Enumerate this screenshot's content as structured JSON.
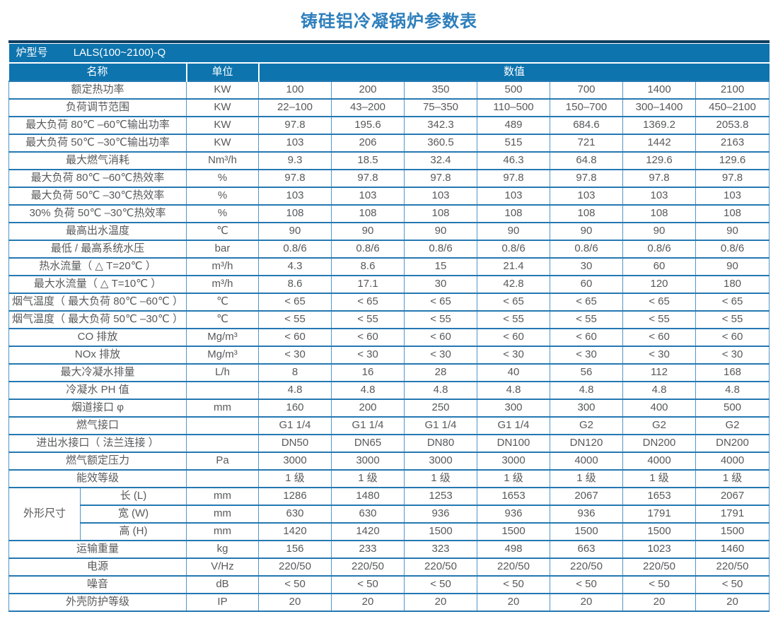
{
  "title": "铸硅铝冷凝锅炉参数表",
  "table": {
    "model_label": "炉型号",
    "model_value": "LALS(100~2100)-Q",
    "col_name": "名称",
    "col_unit": "单位",
    "col_value": "数值",
    "colors": {
      "header_bg": "#0e74ae",
      "top_strip": "#0d3b5e",
      "border_h": "#2478b2",
      "border_v": "#4f97c8",
      "title_text": "#2e7fbc",
      "cell_text": "#58595b"
    },
    "rows": [
      {
        "name": "额定热功率",
        "unit": "KW",
        "values": [
          "100",
          "200",
          "350",
          "500",
          "700",
          "1400",
          "2100"
        ]
      },
      {
        "name": "负荷调节范围",
        "unit": "KW",
        "values": [
          "22–100",
          "43–200",
          "75–350",
          "110–500",
          "150–700",
          "300–1400",
          "450–2100"
        ]
      },
      {
        "name": "最大负荷 80℃ –60℃输出功率",
        "unit": "KW",
        "values": [
          "97.8",
          "195.6",
          "342.3",
          "489",
          "684.6",
          "1369.2",
          "2053.8"
        ]
      },
      {
        "name": "最大负荷 50℃ –30℃输出功率",
        "unit": "KW",
        "values": [
          "103",
          "206",
          "360.5",
          "515",
          "721",
          "1442",
          "2163"
        ]
      },
      {
        "name": "最大燃气消耗",
        "unit": "Nm³/h",
        "values": [
          "9.3",
          "18.5",
          "32.4",
          "46.3",
          "64.8",
          "129.6",
          "129.6"
        ]
      },
      {
        "name": "最大负荷 80℃ –60℃热效率",
        "unit": "%",
        "values": [
          "97.8",
          "97.8",
          "97.8",
          "97.8",
          "97.8",
          "97.8",
          "97.8"
        ]
      },
      {
        "name": "最大负荷 50℃ –30℃热效率",
        "unit": "%",
        "values": [
          "103",
          "103",
          "103",
          "103",
          "103",
          "103",
          "103"
        ]
      },
      {
        "name": "30% 负荷 50℃ –30℃热效率",
        "unit": "%",
        "values": [
          "108",
          "108",
          "108",
          "108",
          "108",
          "108",
          "108"
        ]
      },
      {
        "name": "最高出水温度",
        "unit": "℃",
        "values": [
          "90",
          "90",
          "90",
          "90",
          "90",
          "90",
          "90"
        ]
      },
      {
        "name": "最低 / 最高系统水压",
        "unit": "bar",
        "values": [
          "0.8/6",
          "0.8/6",
          "0.8/6",
          "0.8/6",
          "0.8/6",
          "0.8/6",
          "0.8/6"
        ]
      },
      {
        "name": "热水流量（ △ T=20℃ ）",
        "unit": "m³/h",
        "values": [
          "4.3",
          "8.6",
          "15",
          "21.4",
          "30",
          "60",
          "90"
        ]
      },
      {
        "name": "最大水流量（ △ T=10℃ ）",
        "unit": "m³/h",
        "values": [
          "8.6",
          "17.1",
          "30",
          "42.8",
          "60",
          "120",
          "180"
        ]
      },
      {
        "name": "烟气温度（ 最大负荷 80℃ –60℃ ）",
        "unit": "℃",
        "values": [
          "< 65",
          "< 65",
          "< 65",
          "< 65",
          "< 65",
          "< 65",
          "< 65"
        ]
      },
      {
        "name": "烟气温度（ 最大负荷 50℃ –30℃ ）",
        "unit": "℃",
        "values": [
          "< 55",
          "< 55",
          "< 55",
          "< 55",
          "< 55",
          "< 55",
          "< 55"
        ]
      },
      {
        "name": "CO 排放",
        "unit": "Mg/m³",
        "values": [
          "< 60",
          "< 60",
          "< 60",
          "< 60",
          "< 60",
          "< 60",
          "< 60"
        ]
      },
      {
        "name": "NOx 排放",
        "unit": "Mg/m³",
        "values": [
          "< 30",
          "< 30",
          "< 30",
          "< 30",
          "< 30",
          "< 30",
          "< 30"
        ]
      },
      {
        "name": "最大冷凝水排量",
        "unit": "L/h",
        "values": [
          "8",
          "16",
          "28",
          "40",
          "56",
          "112",
          "168"
        ]
      },
      {
        "name": "冷凝水 PH 值",
        "unit": "",
        "values": [
          "4.8",
          "4.8",
          "4.8",
          "4.8",
          "4.8",
          "4.8",
          "4.8"
        ]
      },
      {
        "name": "烟道接口 φ",
        "unit": "mm",
        "values": [
          "160",
          "200",
          "250",
          "300",
          "300",
          "400",
          "500"
        ]
      },
      {
        "name": "燃气接口",
        "unit": "",
        "values": [
          "G1 1/4",
          "G1 1/4",
          "G1 1/4",
          "G1 1/4",
          "G2",
          "G2",
          "G2"
        ]
      },
      {
        "name": "进出水接口（ 法兰连接 ）",
        "unit": "",
        "values": [
          "DN50",
          "DN65",
          "DN80",
          "DN100",
          "DN120",
          "DN200",
          "DN200"
        ]
      },
      {
        "name": "燃气额定压力",
        "unit": "Pa",
        "values": [
          "3000",
          "3000",
          "3000",
          "3000",
          "4000",
          "4000",
          "4000"
        ]
      },
      {
        "name": "能效等级",
        "unit": "",
        "values": [
          "1 级",
          "1 级",
          "1 级",
          "1 级",
          "1 级",
          "1 级",
          "1 级"
        ]
      },
      {
        "group": {
          "label": "外形尺寸",
          "span": 3
        },
        "name": "长 (L)",
        "unit": "mm",
        "values": [
          "1286",
          "1480",
          "1253",
          "1653",
          "2067",
          "1653",
          "2067"
        ]
      },
      {
        "sub": true,
        "name": "宽 (W)",
        "unit": "mm",
        "values": [
          "630",
          "630",
          "936",
          "936",
          "936",
          "1791",
          "1791"
        ]
      },
      {
        "sub": true,
        "name": "高 (H)",
        "unit": "mm",
        "values": [
          "1420",
          "1420",
          "1500",
          "1500",
          "1500",
          "1500",
          "1500"
        ]
      },
      {
        "name": "运输重量",
        "unit": "kg",
        "values": [
          "156",
          "233",
          "323",
          "498",
          "663",
          "1023",
          "1460"
        ]
      },
      {
        "name": "电源",
        "unit": "V/Hz",
        "values": [
          "220/50",
          "220/50",
          "220/50",
          "220/50",
          "220/50",
          "220/50",
          "220/50"
        ]
      },
      {
        "name": "噪音",
        "unit": "dB",
        "values": [
          "< 50",
          "< 50",
          "< 50",
          "< 50",
          "< 50",
          "< 50",
          "< 50"
        ]
      },
      {
        "name": "外壳防护等级",
        "unit": "IP",
        "values": [
          "20",
          "20",
          "20",
          "20",
          "20",
          "20",
          "20"
        ]
      }
    ]
  }
}
